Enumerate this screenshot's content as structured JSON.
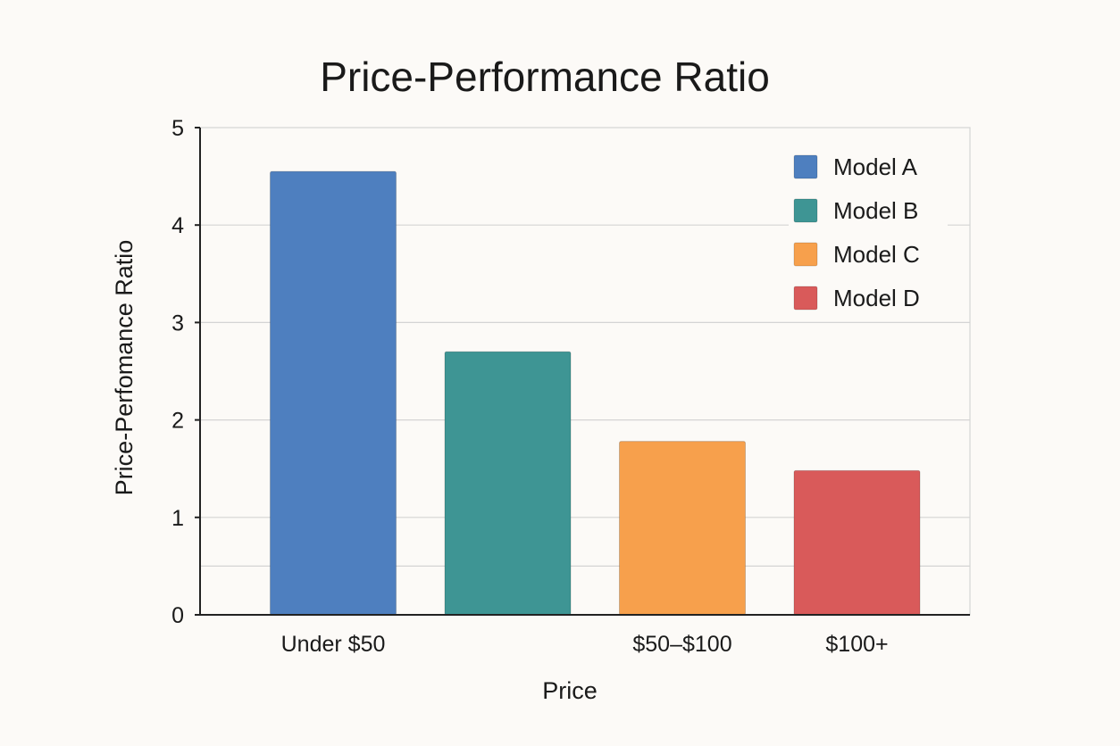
{
  "chart_data": {
    "type": "bar",
    "title": "Price-Performance Ratio",
    "xlabel": "Price",
    "ylabel": "Price-Perfomance Ratio",
    "ylim": [
      0,
      5
    ],
    "y_ticks": [
      0,
      1,
      2,
      3,
      4,
      5
    ],
    "grid": true,
    "legend_position": "top-right",
    "bars": [
      {
        "series": "Model A",
        "value": 4.55,
        "label": "Under $50"
      },
      {
        "series": "Model B",
        "value": 2.7,
        "label": ""
      },
      {
        "series": "Model C",
        "value": 1.78,
        "label": "$50–$100"
      },
      {
        "series": "Model D",
        "value": 1.48,
        "label": "$100+"
      }
    ],
    "legend": [
      "Model A",
      "Model B",
      "Model C",
      "Model D"
    ],
    "colors": [
      "#4e7fbf",
      "#3e9594",
      "#f7a04c",
      "#d95a5a"
    ]
  }
}
